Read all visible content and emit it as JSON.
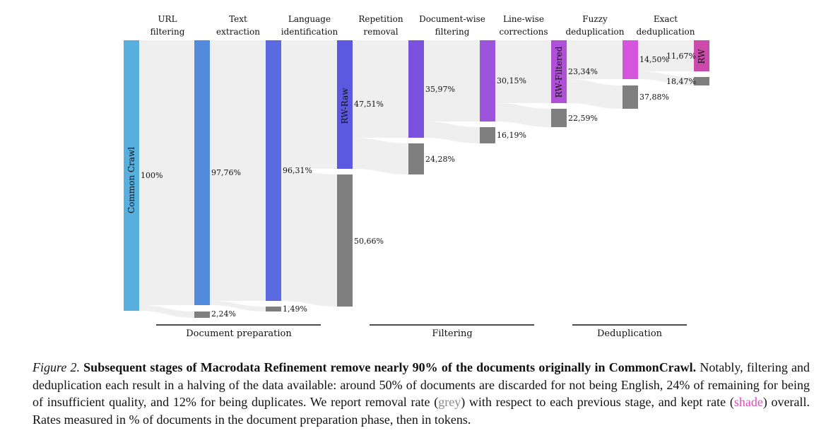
{
  "stages": [
    {
      "line1": "URL",
      "line2": "filtering"
    },
    {
      "line1": "Text",
      "line2": "extraction"
    },
    {
      "line1": "Language",
      "line2": "identification"
    },
    {
      "line1": "Repetition",
      "line2": "removal"
    },
    {
      "line1": "Document-wise",
      "line2": "filtering"
    },
    {
      "line1": "Line-wise",
      "line2": "corrections"
    },
    {
      "line1": "Fuzzy",
      "line2": "deduplication"
    },
    {
      "line1": "Exact",
      "line2": "deduplication"
    }
  ],
  "node_labels": {
    "common_crawl": "Common Crawl",
    "rw_raw": "RW-Raw",
    "rw_filtered": "RW-Filtered",
    "rw": "RW"
  },
  "groups": {
    "doc_prep": "Document preparation",
    "filtering": "Filtering",
    "dedup": "Deduplication"
  },
  "chart_data": {
    "type": "sankey",
    "unit": "% of documents",
    "kept": [
      {
        "stage": "Common Crawl",
        "value": "100%"
      },
      {
        "stage": "Text extraction",
        "value": "97,76%"
      },
      {
        "stage": "Language identification",
        "value": "96,31%"
      },
      {
        "stage": "Repetition removal",
        "value": "47,51%"
      },
      {
        "stage": "Document-wise filtering",
        "value": "35,97%"
      },
      {
        "stage": "Line-wise corrections",
        "value": "30,15%"
      },
      {
        "stage": "Fuzzy deduplication",
        "value": "23,34%"
      },
      {
        "stage": "Exact deduplication",
        "value": "14,50%"
      },
      {
        "stage": "RW",
        "value": "11,67%"
      }
    ],
    "removed": [
      {
        "stage": "URL filtering",
        "value": "2,24%"
      },
      {
        "stage": "Text extraction",
        "value": "1,49%"
      },
      {
        "stage": "Language identification",
        "value": "50,66%"
      },
      {
        "stage": "Repetition removal",
        "value": "24,28%"
      },
      {
        "stage": "Document-wise filtering",
        "value": "16,19%"
      },
      {
        "stage": "Line-wise corrections",
        "value": "22,59%"
      },
      {
        "stage": "Fuzzy deduplication",
        "value": "37,88%"
      },
      {
        "stage": "Exact deduplication",
        "value": "18,47%"
      }
    ]
  },
  "caption": {
    "figure_number": "Figure 2.",
    "bold": "Subsequent stages of Macrodata Refinement remove nearly 90% of the documents originally in CommonCrawl.",
    "text1": "Notably, filtering and deduplication each result in a halving of the data available: around 50% of documents are discarded for not being English, 24% of remaining for being of insufficient quality, and 12% for being duplicates. We report removal rate (",
    "grey_word": "grey",
    "text2": ") with respect to each previous stage, and kept rate (",
    "shade_word": "shade",
    "text3": ") overall. Rates measured in % of documents in the document preparation phase, then in tokens."
  },
  "colors": {
    "common_crawl": "#58aedc",
    "text_extraction": "#528bdb",
    "language_id": "#5a6ae0",
    "rw_raw": "#5c58e0",
    "doc_filter": "#7a52dd",
    "line_corr": "#9c54dc",
    "rw_filtered": "#b04fd8",
    "exact_dedup": "#d655dd",
    "rw": "#cc4aac",
    "removed": "#7f7f7f",
    "flow": "#efefef"
  }
}
